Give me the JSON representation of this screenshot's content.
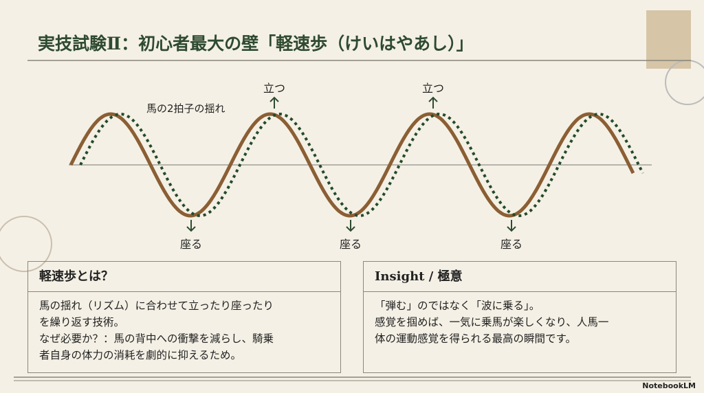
{
  "header": {
    "title": "実技試験Ⅱ：初心者最大の壁「軽速歩（けいはやあし）」"
  },
  "diagram": {
    "caption": "馬の2拍子の揺れ",
    "stand_labels": [
      "立つ",
      "立つ"
    ],
    "sit_labels": [
      "座る",
      "座る",
      "座る"
    ]
  },
  "boxes": [
    {
      "title": "軽速歩とは？",
      "lines": [
        "馬の揺れ（リズム）に合わせて立ったり座ったり",
        "を繰り返す技術。",
        "なぜ必要か？：馬の背中への衝撃を減らし、騎乗",
        "者自身の体力の消耗を劇的に抑えるため。"
      ]
    },
    {
      "title": "Insight / 極意",
      "lines": [
        "「弾む」のではなく「波に乗る」。",
        "感覚を掴めば、一気に乗馬が楽しくなり、人馬一",
        "体の運動感覚を得られる最高の瞬間です。"
      ]
    }
  ],
  "footer": {
    "brand": "NotebookLM"
  }
}
